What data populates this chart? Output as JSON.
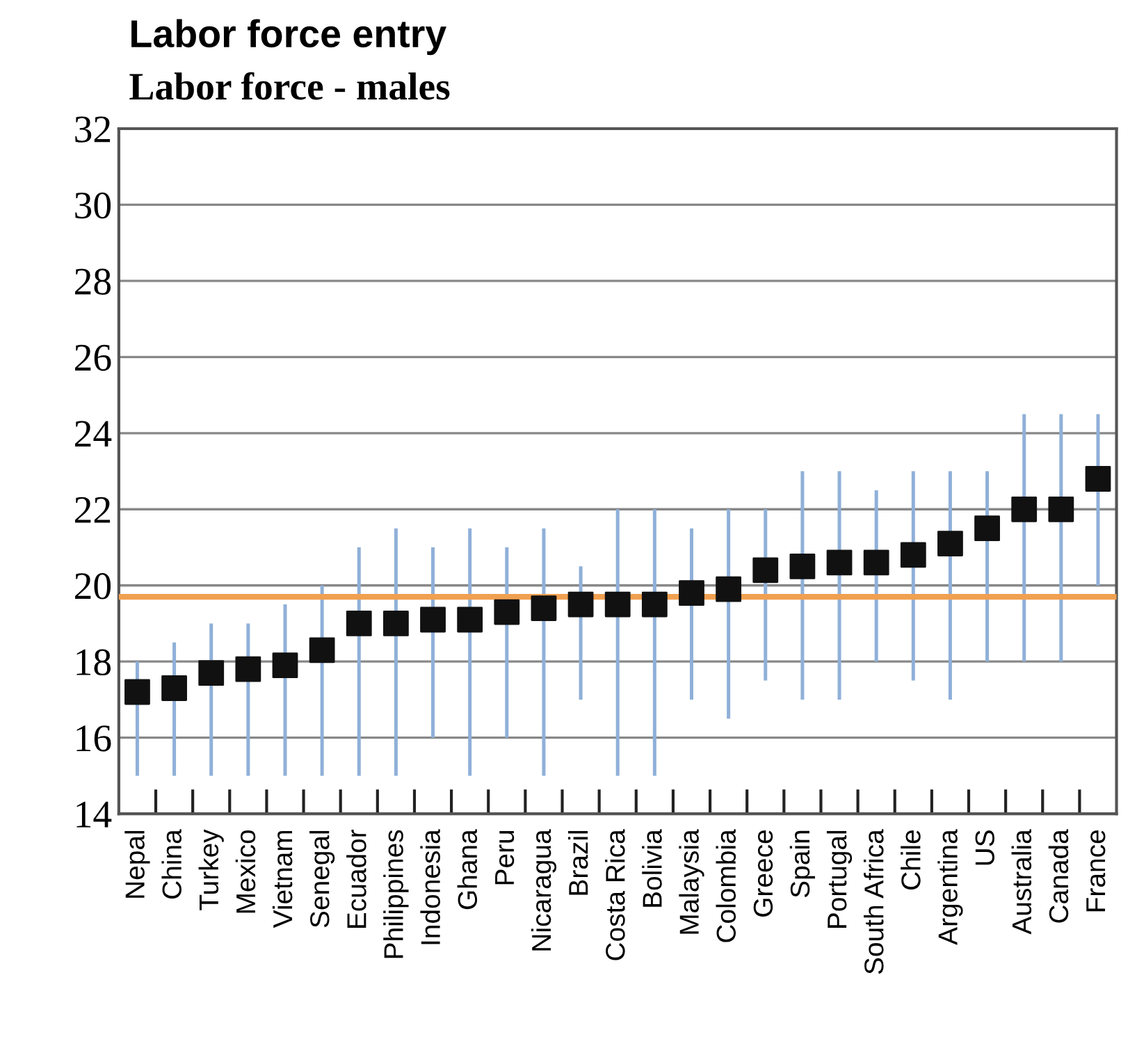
{
  "chart_data": {
    "type": "scatter",
    "title": "Labor force entry",
    "subtitle": "Labor force - males",
    "categories": [
      "Nepal",
      "China",
      "Turkey",
      "Mexico",
      "Vietnam",
      "Senegal",
      "Ecuador",
      "Philippines",
      "Indonesia",
      "Ghana",
      "Peru",
      "Nicaragua",
      "Brazil",
      "Costa Rica",
      "Bolivia",
      "Malaysia",
      "Colombia",
      "Greece",
      "Spain",
      "Portugal",
      "South Africa",
      "Chile",
      "Argentina",
      "US",
      "Australia",
      "Canada",
      "France"
    ],
    "series": [
      {
        "color": "#111111",
        "values": [
          17.2,
          17.3,
          17.7,
          17.8,
          17.9,
          18.3,
          19.0,
          19.0,
          19.1,
          19.1,
          19.3,
          19.4,
          19.5,
          19.5,
          19.5,
          19.8,
          19.9,
          20.4,
          20.5,
          20.6,
          20.6,
          20.8,
          21.1,
          21.5,
          22.0,
          22.0,
          22.8
        ],
        "errors": [
          [
            15,
            18
          ],
          [
            15,
            18.5
          ],
          [
            15,
            19
          ],
          [
            15,
            19
          ],
          [
            15,
            19.5
          ],
          [
            15,
            20
          ],
          [
            15,
            21
          ],
          [
            15,
            21.5
          ],
          [
            16,
            21
          ],
          [
            15,
            21.5
          ],
          [
            16,
            21
          ],
          [
            15,
            21.5
          ],
          [
            17,
            20.5
          ],
          [
            15,
            22
          ],
          [
            15,
            22
          ],
          [
            17,
            21.5
          ],
          [
            16.5,
            22
          ],
          [
            17.5,
            22
          ],
          [
            17,
            23
          ],
          [
            17,
            23
          ],
          [
            18,
            22.5
          ],
          [
            17.5,
            23
          ],
          [
            17,
            23
          ],
          [
            18,
            23
          ],
          [
            18,
            24.5
          ],
          [
            18,
            24.5
          ],
          [
            20,
            24.5
          ]
        ]
      }
    ],
    "marker": "square",
    "ylim": [
      14,
      32
    ],
    "yticks": [
      14,
      16,
      18,
      20,
      22,
      24,
      26,
      28,
      30,
      32
    ],
    "grid": "y",
    "legend": false,
    "ref_lines": [
      {
        "axis": "y",
        "value": 19.7,
        "color": "#f0a050"
      }
    ]
  }
}
